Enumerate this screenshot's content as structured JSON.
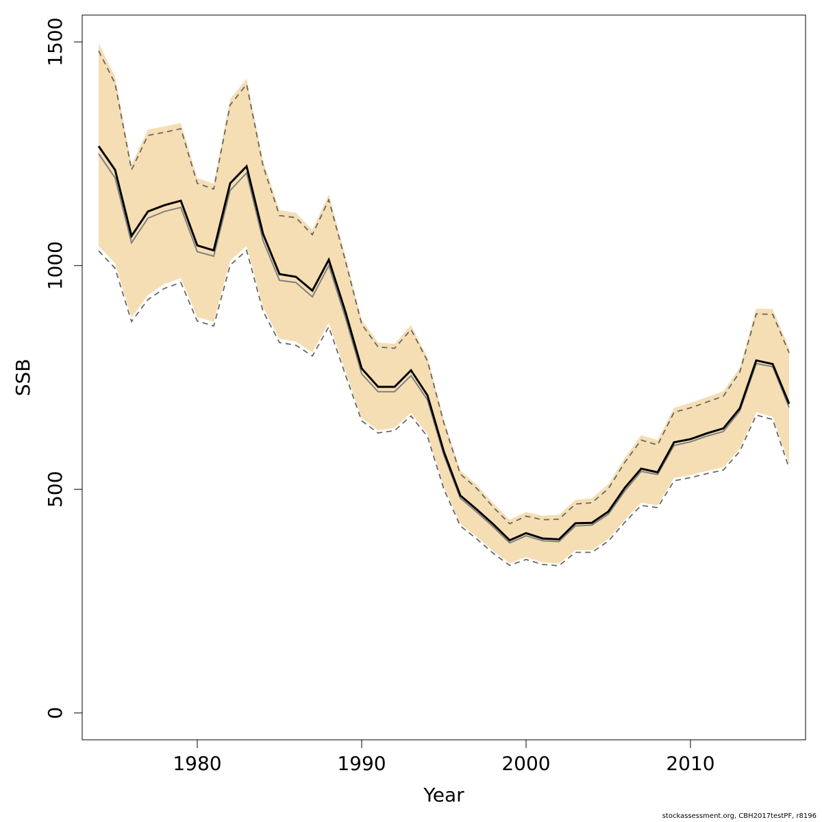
{
  "chart_data": {
    "type": "area",
    "xlabel": "Year",
    "ylabel": "SSB",
    "xlim": [
      1973,
      2017
    ],
    "ylim": [
      -60,
      1560
    ],
    "xticks": [
      1980,
      1990,
      2000,
      2010
    ],
    "yticks": [
      0,
      500,
      1000,
      1500
    ],
    "grid": false,
    "legend": "none",
    "colors": {
      "band": "#f5deb3",
      "main_line": "#000000",
      "secondary_line": "#808080",
      "ci_line": "#666666"
    },
    "years": [
      1974,
      1975,
      1976,
      1977,
      1978,
      1979,
      1980,
      1981,
      1982,
      1983,
      1984,
      1985,
      1986,
      1987,
      1988,
      1989,
      1990,
      1991,
      1992,
      1993,
      1994,
      1995,
      1996,
      1997,
      1998,
      1999,
      2000,
      2001,
      2002,
      2003,
      2004,
      2005,
      2006,
      2007,
      2008,
      2009,
      2010,
      2011,
      2012,
      2013,
      2014,
      2015,
      2016
    ],
    "series": [
      {
        "values": [
          1267,
          1214,
          1066,
          1121,
          1135,
          1145,
          1045,
          1034,
          1184,
          1222,
          1071,
          981,
          975,
          944,
          1013,
          898,
          770,
          729,
          729,
          766,
          710,
          584,
          486,
          455,
          422,
          386,
          402,
          390,
          388,
          424,
          425,
          450,
          503,
          546,
          538,
          605,
          612,
          625,
          636,
          681,
          788,
          780,
          691
        ]
      },
      {
        "values": [
          1250,
          1196,
          1051,
          1106,
          1121,
          1130,
          1031,
          1021,
          1168,
          1207,
          1056,
          967,
          962,
          930,
          1000,
          885,
          758,
          718,
          718,
          754,
          700,
          576,
          480,
          449,
          416,
          380,
          396,
          385,
          383,
          418,
          420,
          444,
          496,
          540,
          533,
          598,
          606,
          619,
          629,
          675,
          781,
          774,
          683
        ]
      },
      {
        "values": [
          1497,
          1422,
          1226,
          1304,
          1311,
          1319,
          1196,
          1183,
          1372,
          1418,
          1234,
          1124,
          1118,
          1080,
          1159,
          1023,
          879,
          828,
          825,
          867,
          796,
          657,
          542,
          510,
          469,
          432,
          449,
          441,
          443,
          476,
          480,
          511,
          570,
          621,
          610,
          682,
          693,
          706,
          719,
          772,
          904,
          903,
          816
        ]
      },
      {
        "values": [
          1480,
          1407,
          1214,
          1291,
          1298,
          1306,
          1184,
          1171,
          1359,
          1405,
          1223,
          1112,
          1107,
          1069,
          1147,
          1012,
          869,
          818,
          815,
          857,
          787,
          648,
          534,
          502,
          460,
          423,
          440,
          432,
          433,
          467,
          470,
          501,
          560,
          610,
          599,
          672,
          682,
          695,
          708,
          762,
          892,
          891,
          805
        ]
      },
      {
        "values": [
          1044,
          1005,
          884,
          934,
          959,
          972,
          885,
          874,
          1011,
          1044,
          907,
          836,
          830,
          806,
          872,
          765,
          659,
          632,
          637,
          671,
          624,
          505,
          423,
          394,
          362,
          335,
          348,
          337,
          334,
          364,
          364,
          389,
          432,
          470,
          464,
          525,
          532,
          541,
          549,
          591,
          672,
          662,
          556
        ]
      },
      {
        "values": [
          1033,
          994,
          875,
          924,
          949,
          962,
          876,
          865,
          1001,
          1034,
          898,
          828,
          822,
          798,
          863,
          757,
          653,
          626,
          631,
          664,
          618,
          500,
          418,
          389,
          357,
          330,
          343,
          332,
          329,
          359,
          359,
          384,
          426,
          464,
          459,
          519,
          526,
          535,
          543,
          585,
          666,
          656,
          547
        ]
      }
    ]
  },
  "footer": {
    "credit": "stockassessment.org, CBH2017testPF, r8196"
  }
}
